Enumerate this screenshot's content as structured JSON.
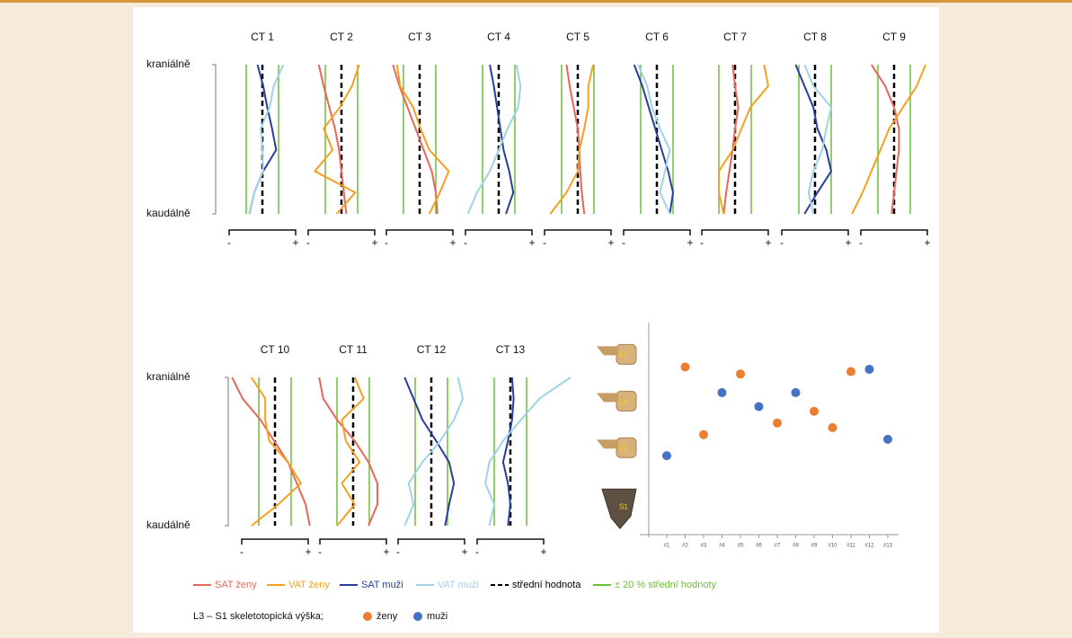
{
  "legend": {
    "items": [
      {
        "label": "SAT ženy",
        "color": "#e8675a",
        "dash": false
      },
      {
        "label": "VAT ženy",
        "color": "#f5a020",
        "dash": false
      },
      {
        "label": "SAT muži",
        "color": "#2a3d9a",
        "dash": false
      },
      {
        "label": "VAT muži",
        "color": "#9fd3e6",
        "dash": false
      },
      {
        "label": "střední hodnota",
        "color": "#000000",
        "dash": true
      },
      {
        "label": "± 20 % střední hodnoty",
        "color": "#6cbf3a",
        "dash": false
      }
    ]
  },
  "chart_data": [
    {
      "type": "profile",
      "title": "CT 1",
      "top_label": "kraniálně",
      "bottom_label": "kaudálně",
      "xlim_labels": [
        "-",
        "+"
      ],
      "xlim": [
        -45,
        45
      ],
      "mean": 0,
      "band": [
        -20,
        20
      ],
      "series": [
        {
          "name": "SAT muži",
          "color": "#2a3d9a",
          "values": [
            -6,
            1,
            6,
            12,
            17,
            1,
            -10,
            -16
          ]
        },
        {
          "name": "VAT muži",
          "color": "#9fd3e6",
          "values": [
            26,
            14,
            9,
            -2,
            0,
            1,
            -10,
            -16
          ]
        }
      ]
    },
    {
      "type": "profile",
      "title": "CT 2",
      "xlim_labels": [
        "-",
        "+"
      ],
      "xlim": [
        -45,
        45
      ],
      "mean": 0,
      "band": [
        -20,
        20
      ],
      "series": [
        {
          "name": "SAT ženy",
          "color": "#e8675a",
          "values": [
            -28,
            -22,
            -15,
            -8,
            -3,
            0,
            3,
            6
          ]
        },
        {
          "name": "VAT ženy",
          "color": "#f5a020",
          "values": [
            22,
            13,
            -2,
            -22,
            -11,
            -33,
            17,
            -6
          ]
        }
      ]
    },
    {
      "type": "profile",
      "title": "CT 3",
      "xlim_labels": [
        "-",
        "+"
      ],
      "xlim": [
        -45,
        45
      ],
      "mean": 0,
      "band": [
        -20,
        20
      ],
      "series": [
        {
          "name": "SAT ženy",
          "color": "#e8675a",
          "values": [
            -33,
            -25,
            -15,
            -5,
            5,
            15,
            20,
            22
          ]
        },
        {
          "name": "VAT ženy",
          "color": "#f5a020",
          "values": [
            -28,
            -24,
            -8,
            1,
            12,
            36,
            25,
            12
          ]
        }
      ]
    },
    {
      "type": "profile",
      "title": "CT 4",
      "xlim_labels": [
        "-",
        "+"
      ],
      "xlim": [
        -45,
        45
      ],
      "mean": 0,
      "band": [
        -20,
        20
      ],
      "series": [
        {
          "name": "SAT muži",
          "color": "#2a3d9a",
          "values": [
            -11,
            -6,
            -2,
            2,
            6,
            13,
            18,
            9
          ]
        },
        {
          "name": "VAT muži",
          "color": "#9fd3e6",
          "values": [
            22,
            27,
            24,
            11,
            0,
            -11,
            -27,
            -38
          ]
        }
      ]
    },
    {
      "type": "profile",
      "title": "CT 5",
      "xlim_labels": [
        "-",
        "+"
      ],
      "xlim": [
        -45,
        45
      ],
      "mean": 0,
      "band": [
        -20,
        20
      ],
      "series": [
        {
          "name": "SAT ženy",
          "color": "#e8675a",
          "values": [
            -14,
            -10,
            -5,
            0,
            2,
            3,
            5,
            8
          ]
        },
        {
          "name": "VAT ženy",
          "color": "#f5a020",
          "values": [
            19,
            13,
            13,
            8,
            2,
            0,
            -14,
            -34
          ]
        }
      ]
    },
    {
      "type": "profile",
      "title": "CT 6",
      "xlim_labels": [
        "-",
        "+"
      ],
      "xlim": [
        -45,
        45
      ],
      "mean": 0,
      "band": [
        -20,
        20
      ],
      "series": [
        {
          "name": "SAT muži",
          "color": "#2a3d9a",
          "values": [
            -28,
            -18,
            -10,
            -2,
            6,
            14,
            20,
            16
          ]
        },
        {
          "name": "VAT muži",
          "color": "#9fd3e6",
          "values": [
            -23,
            -12,
            -6,
            4,
            16,
            10,
            4,
            16
          ]
        }
      ]
    },
    {
      "type": "profile",
      "title": "CT 7",
      "xlim_labels": [
        "-",
        "+"
      ],
      "xlim": [
        -45,
        45
      ],
      "mean": 0,
      "band": [
        -20,
        20
      ],
      "series": [
        {
          "name": "SAT ženy",
          "color": "#e8675a",
          "values": [
            -3,
            0,
            4,
            0,
            -3,
            -7,
            -11,
            -14
          ]
        },
        {
          "name": "VAT ženy",
          "color": "#f5a020",
          "values": [
            36,
            41,
            19,
            8,
            -3,
            -20,
            -20,
            -14
          ]
        }
      ]
    },
    {
      "type": "profile",
      "title": "CT 8",
      "xlim_labels": [
        "-",
        "+"
      ],
      "xlim": [
        -45,
        45
      ],
      "mean": 0,
      "band": [
        -20,
        20
      ],
      "series": [
        {
          "name": "SAT muži",
          "color": "#2a3d9a",
          "values": [
            -24,
            -13,
            -2,
            3,
            14,
            20,
            3,
            -13
          ]
        },
        {
          "name": "VAT muži",
          "color": "#9fd3e6",
          "values": [
            -13,
            -2,
            20,
            14,
            9,
            -2,
            -8,
            -2
          ]
        }
      ]
    },
    {
      "type": "profile",
      "title": "CT 9",
      "xlim_labels": [
        "-",
        "+"
      ],
      "xlim": [
        -45,
        45
      ],
      "mean": 0,
      "band": [
        -20,
        20
      ],
      "series": [
        {
          "name": "SAT ženy",
          "color": "#e8675a",
          "values": [
            -28,
            -11,
            0,
            6,
            6,
            3,
            0,
            -3
          ]
        },
        {
          "name": "VAT ženy",
          "color": "#f5a020",
          "values": [
            39,
            28,
            11,
            -6,
            -17,
            -28,
            -39,
            -52
          ]
        }
      ]
    },
    {
      "type": "profile",
      "title": "CT 10",
      "top_label": "kraniálně",
      "bottom_label": "kaudálně",
      "xlim_labels": [
        "-",
        "+"
      ],
      "xlim": [
        -45,
        45
      ],
      "mean": 0,
      "band": [
        -20,
        20
      ],
      "series": [
        {
          "name": "SAT ženy",
          "color": "#e8675a",
          "values": [
            -53,
            -40,
            -18,
            -1,
            16,
            27,
            38,
            43
          ]
        },
        {
          "name": "VAT ženy",
          "color": "#f5a020",
          "values": [
            -29,
            -12,
            -12,
            -7,
            16,
            32,
            4,
            -29
          ]
        }
      ]
    },
    {
      "type": "profile",
      "title": "CT 11",
      "xlim_labels": [
        "-",
        "+"
      ],
      "xlim": [
        -45,
        45
      ],
      "mean": 0,
      "band": [
        -20,
        20
      ],
      "series": [
        {
          "name": "SAT ženy",
          "color": "#e8675a",
          "values": [
            -42,
            -37,
            -20,
            2,
            19,
            30,
            30,
            19
          ]
        },
        {
          "name": "VAT ženy",
          "color": "#f5a020",
          "values": [
            2,
            13,
            -14,
            -9,
            8,
            -14,
            2,
            -20
          ]
        }
      ]
    },
    {
      "type": "profile",
      "title": "CT 12",
      "xlim_labels": [
        "-",
        "+"
      ],
      "xlim": [
        -45,
        45
      ],
      "mean": 0,
      "band": [
        -20,
        20
      ],
      "series": [
        {
          "name": "SAT muži",
          "color": "#2a3d9a",
          "values": [
            -33,
            -22,
            -11,
            6,
            22,
            28,
            22,
            17
          ]
        },
        {
          "name": "VAT muži",
          "color": "#9fd3e6",
          "values": [
            33,
            39,
            28,
            11,
            -11,
            -28,
            -22,
            -33
          ]
        }
      ]
    },
    {
      "type": "profile",
      "title": "CT 13",
      "xlim_labels": [
        "-",
        "+"
      ],
      "xlim": [
        -45,
        45
      ],
      "mean": 0,
      "band": [
        -20,
        20
      ],
      "series": [
        {
          "name": "SAT muži",
          "color": "#2a3d9a",
          "values": [
            2,
            4,
            2,
            -3,
            -9,
            -3,
            0,
            -3
          ]
        },
        {
          "name": "VAT muži",
          "color": "#9fd3e6",
          "values": [
            74,
            36,
            13,
            -9,
            -26,
            -31,
            -20,
            -26
          ]
        }
      ]
    },
    {
      "type": "scatter",
      "legend_title": "L3 – S1 skeletotopická výška;",
      "categories": [
        "#1",
        "#2",
        "#3",
        "#4",
        "#5",
        "#6",
        "#7",
        "#8",
        "#9",
        "#10",
        "#11",
        "#12",
        "#13"
      ],
      "ylim": [
        2.3,
        6.9
      ],
      "y_inverted": true,
      "yticks": [
        {
          "value": 3,
          "label": "L3"
        },
        {
          "value": 4,
          "label": "L4"
        },
        {
          "value": 5,
          "label": "L5"
        },
        {
          "value": 6.25,
          "label": "S1"
        }
      ],
      "series": [
        {
          "name": "ženy",
          "color": "#ed7d31",
          "values": [
            null,
            3.25,
            4.7,
            null,
            3.4,
            null,
            4.45,
            null,
            4.2,
            4.55,
            3.35,
            null,
            null
          ]
        },
        {
          "name": "muži",
          "color": "#4472c4",
          "values": [
            5.15,
            null,
            null,
            3.8,
            null,
            4.1,
            null,
            3.8,
            null,
            null,
            null,
            3.3,
            4.8
          ]
        }
      ]
    }
  ]
}
